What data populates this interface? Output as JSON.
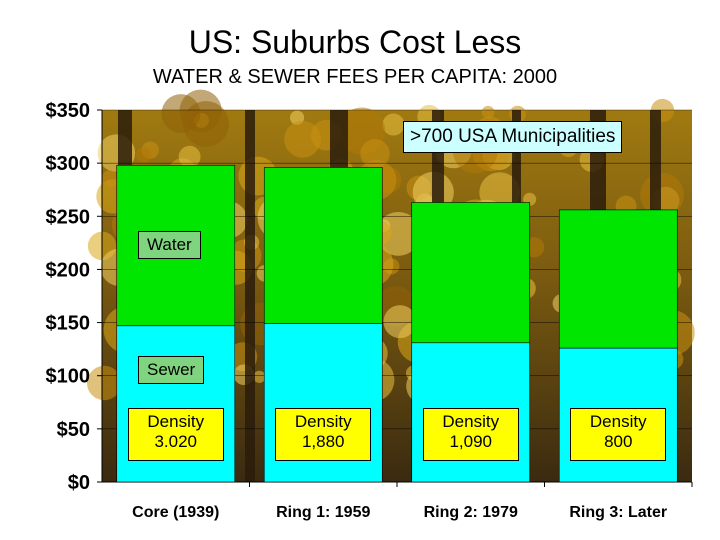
{
  "colors": {
    "water": "#00e600",
    "sewer": "#00ffff",
    "density_box": "#ffff00",
    "label_box": "#7fd47f",
    "annotation_box": "#ccffff"
  },
  "chart_data": {
    "type": "bar",
    "stacked": true,
    "title": "US: Suburbs Cost Less",
    "subtitle": "WATER & SEWER FEES PER CAPITA: 2000",
    "categories": [
      "Core (1939)",
      "Ring 1: 1959",
      "Ring 2: 1979",
      "Ring 3: Later"
    ],
    "series": [
      {
        "name": "Sewer",
        "values": [
          147,
          149,
          131,
          126
        ]
      },
      {
        "name": "Water",
        "values": [
          151,
          147,
          132,
          130
        ]
      }
    ],
    "density": [
      {
        "label": "Density",
        "value": "3.020"
      },
      {
        "label": "Density",
        "value": "1,880"
      },
      {
        "label": "Density",
        "value": "1,090"
      },
      {
        "label": "Density",
        "value": "800"
      }
    ],
    "yticks": [
      "$0",
      "$50",
      "$100",
      "$150",
      "$200",
      "$250",
      "$300",
      "$350"
    ],
    "ylim": [
      0,
      350
    ],
    "annotation": ">700 USA Municipalities",
    "background": "autumn forest photo"
  }
}
